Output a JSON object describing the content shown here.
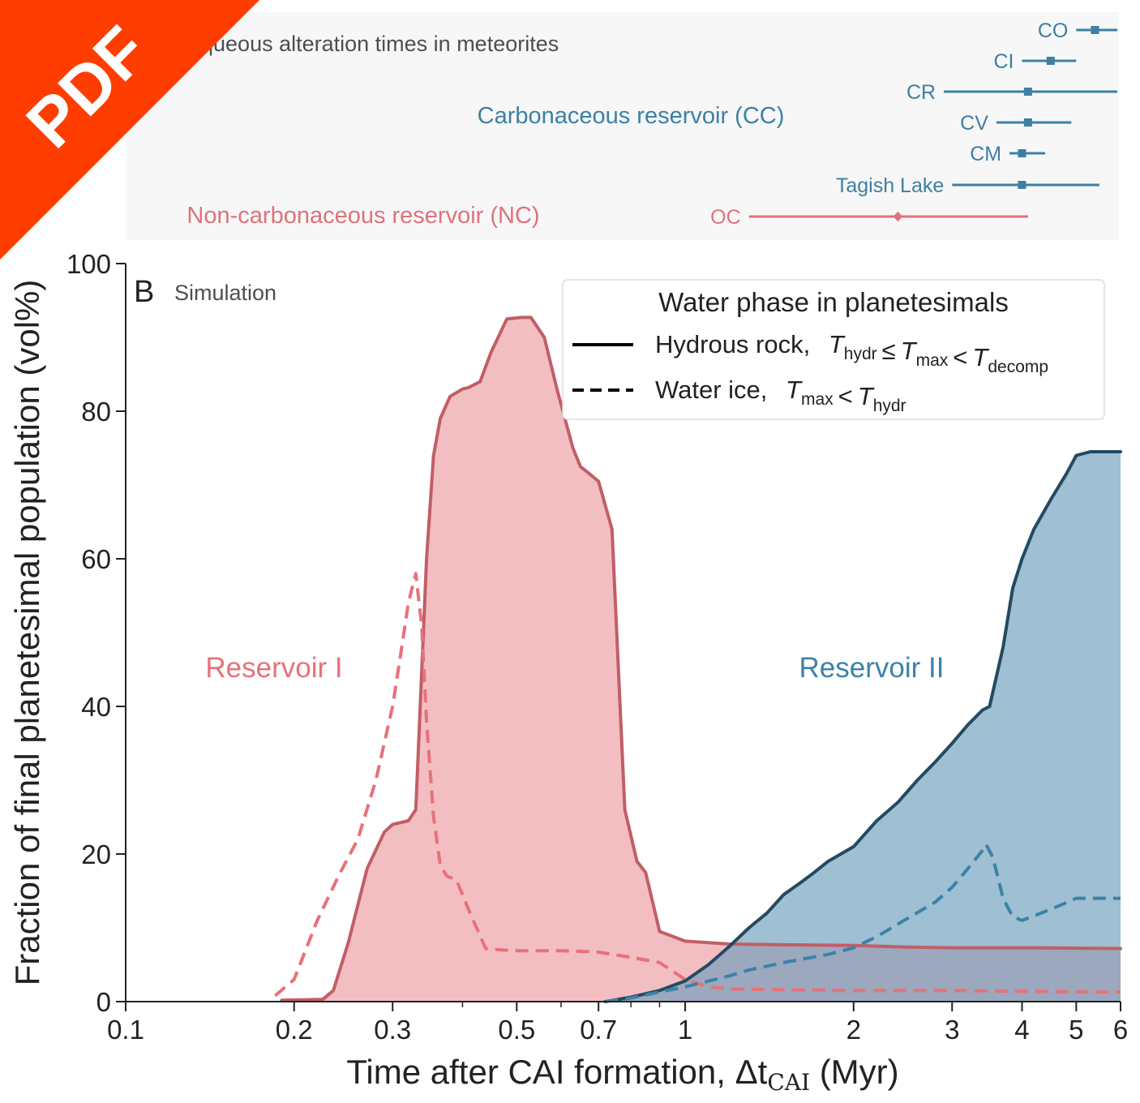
{
  "badge": {
    "label": "PDF"
  },
  "top_panel": {
    "title": "Aqueous alteration times in meteorites",
    "cc_label": "Carbonaceous reservoir (CC)",
    "nc_label": "Non-carbonaceous reservoir (NC)",
    "colors": {
      "cc": "#3d80a3",
      "nc": "#e0727a",
      "panel_bg": "#f7f7f7"
    },
    "meteorites": [
      {
        "name": "CO",
        "group": "cc",
        "min": 5.0,
        "mid": 5.4,
        "max": 6.0,
        "marker": "square"
      },
      {
        "name": "CI",
        "group": "cc",
        "min": 4.0,
        "mid": 4.5,
        "max": 5.0,
        "marker": "square"
      },
      {
        "name": "CR",
        "group": "cc",
        "min": 2.9,
        "mid": 4.1,
        "max": 6.0,
        "marker": "square"
      },
      {
        "name": "CV",
        "group": "cc",
        "min": 3.6,
        "mid": 4.1,
        "max": 4.9,
        "marker": "square"
      },
      {
        "name": "CM",
        "group": "cc",
        "min": 3.8,
        "mid": 4.0,
        "max": 4.4,
        "marker": "square"
      },
      {
        "name": "Tagish Lake",
        "group": "cc",
        "min": 3.0,
        "mid": 4.0,
        "max": 5.5,
        "marker": "square"
      },
      {
        "name": "OC",
        "group": "nc",
        "min": 1.3,
        "mid": 2.4,
        "max": 4.1,
        "marker": "diamond"
      }
    ]
  },
  "chart_data": {
    "type": "area",
    "panel_letter": "B",
    "panel_note": "Simulation",
    "xlabel": "Time after CAI formation, Δt",
    "xlabel_sub": "CAI",
    "xlabel_unit": " (Myr)",
    "ylabel": "Fraction of final planetesimal population (vol%)",
    "x_scale": "log",
    "xlim": [
      0.1,
      6
    ],
    "ylim": [
      0,
      100
    ],
    "x_ticks": [
      0.1,
      0.2,
      0.3,
      0.5,
      0.7,
      1,
      2,
      3,
      4,
      5,
      6
    ],
    "x_tick_labels": [
      "0.1",
      "0.2",
      "0.3",
      "0.5",
      "0.7",
      "1",
      "2",
      "3",
      "4",
      "5",
      "6"
    ],
    "y_ticks": [
      0,
      20,
      40,
      60,
      80,
      100
    ],
    "y_tick_labels": [
      "0",
      "20",
      "40",
      "60",
      "80",
      "100"
    ],
    "grid": false,
    "legend": {
      "title": "Water phase in planetesimals",
      "position": "top-right",
      "entries": [
        {
          "label": "Hydrous rock,",
          "style": "solid",
          "math": [
            [
              "T",
              "hydr"
            ],
            [
              "≤"
            ],
            [
              "T",
              "max"
            ],
            [
              "<"
            ],
            [
              "T",
              "decomp"
            ]
          ]
        },
        {
          "label": "Water ice,",
          "style": "dashed",
          "math": [
            [
              "T",
              "max"
            ],
            [
              "<"
            ],
            [
              "T",
              "hydr"
            ]
          ]
        }
      ]
    },
    "annotations": [
      {
        "text": "Reservoir I",
        "series": "res1"
      },
      {
        "text": "Reservoir II",
        "series": "res2"
      }
    ],
    "series": [
      {
        "id": "res1_hydrous",
        "reservoir": "res1",
        "style": "solid",
        "filled": true,
        "line_color": "#c25e66",
        "fill_color": "#f2bbbf",
        "x": [
          0.19,
          0.225,
          0.235,
          0.25,
          0.27,
          0.29,
          0.3,
          0.32,
          0.33,
          0.345,
          0.355,
          0.365,
          0.38,
          0.4,
          0.41,
          0.43,
          0.45,
          0.48,
          0.51,
          0.53,
          0.56,
          0.59,
          0.63,
          0.65,
          0.675,
          0.7,
          0.74,
          0.78,
          0.82,
          0.85,
          0.9,
          1.0,
          1.2,
          1.5,
          2.0,
          2.5,
          3.0,
          4.0,
          6.0
        ],
        "y": [
          0.2,
          0.3,
          1.5,
          8,
          18,
          23,
          24,
          24.5,
          26,
          60,
          74,
          79,
          82,
          83,
          83.2,
          84,
          88,
          92.5,
          92.7,
          92.7,
          90,
          83,
          75,
          72.5,
          71.5,
          70.5,
          64,
          26,
          19,
          17.5,
          9.5,
          8.2,
          7.8,
          7.7,
          7.6,
          7.4,
          7.3,
          7.3,
          7.2
        ]
      },
      {
        "id": "res1_ice",
        "reservoir": "res1",
        "style": "dashed",
        "filled": false,
        "line_color": "#e87179",
        "x": [
          0.185,
          0.2,
          0.22,
          0.24,
          0.26,
          0.28,
          0.3,
          0.31,
          0.32,
          0.33,
          0.338,
          0.345,
          0.355,
          0.365,
          0.375,
          0.39,
          0.41,
          0.44,
          0.47,
          0.5,
          0.6,
          0.7,
          0.8,
          0.9,
          1.0,
          1.1,
          1.2,
          1.5,
          2.0,
          3.0,
          4.0,
          6.0
        ],
        "y": [
          0.8,
          3,
          11,
          17,
          22,
          30,
          40,
          47,
          54,
          58,
          51,
          38,
          25,
          18.5,
          17,
          16.5,
          12.5,
          7.2,
          7,
          6.9,
          6.9,
          6.7,
          6,
          5.3,
          3,
          2,
          1.7,
          1.6,
          1.5,
          1.5,
          1.4,
          1.3
        ]
      },
      {
        "id": "res2_hydrous",
        "reservoir": "res2",
        "style": "solid",
        "filled": true,
        "line_color": "#234a63",
        "fill_color": "#6b9cba",
        "x": [
          0.72,
          0.8,
          0.9,
          1.0,
          1.1,
          1.2,
          1.3,
          1.4,
          1.5,
          1.6,
          1.7,
          1.8,
          2.0,
          2.2,
          2.4,
          2.6,
          2.8,
          3.0,
          3.2,
          3.4,
          3.5,
          3.7,
          3.85,
          4.0,
          4.2,
          4.5,
          4.8,
          5.0,
          5.3,
          5.6,
          6.0
        ],
        "y": [
          0,
          0.6,
          1.5,
          2.8,
          5,
          7.5,
          10,
          12,
          14.5,
          16,
          17.5,
          19,
          21,
          24.5,
          27,
          30,
          32.5,
          35,
          37.5,
          39.5,
          40,
          48,
          56,
          60,
          64,
          68,
          71.5,
          74,
          74.5,
          74.5,
          74.5
        ]
      },
      {
        "id": "res2_ice",
        "reservoir": "res2",
        "style": "dashed",
        "filled": false,
        "line_color": "#3c82a8",
        "x": [
          0.72,
          0.8,
          0.9,
          1.0,
          1.2,
          1.3,
          1.4,
          1.5,
          1.8,
          2.0,
          2.2,
          2.5,
          2.8,
          3.0,
          3.2,
          3.4,
          3.45,
          3.55,
          3.7,
          3.85,
          4.0,
          4.5,
          5.0,
          5.5,
          6.0
        ],
        "y": [
          0,
          0.5,
          1.3,
          2,
          3.5,
          4.3,
          4.8,
          5.3,
          6.4,
          7.3,
          8.8,
          11.3,
          13.5,
          15.5,
          18,
          20.5,
          21.3,
          19.5,
          14,
          11.5,
          11,
          12.5,
          14,
          14,
          14
        ]
      }
    ]
  }
}
